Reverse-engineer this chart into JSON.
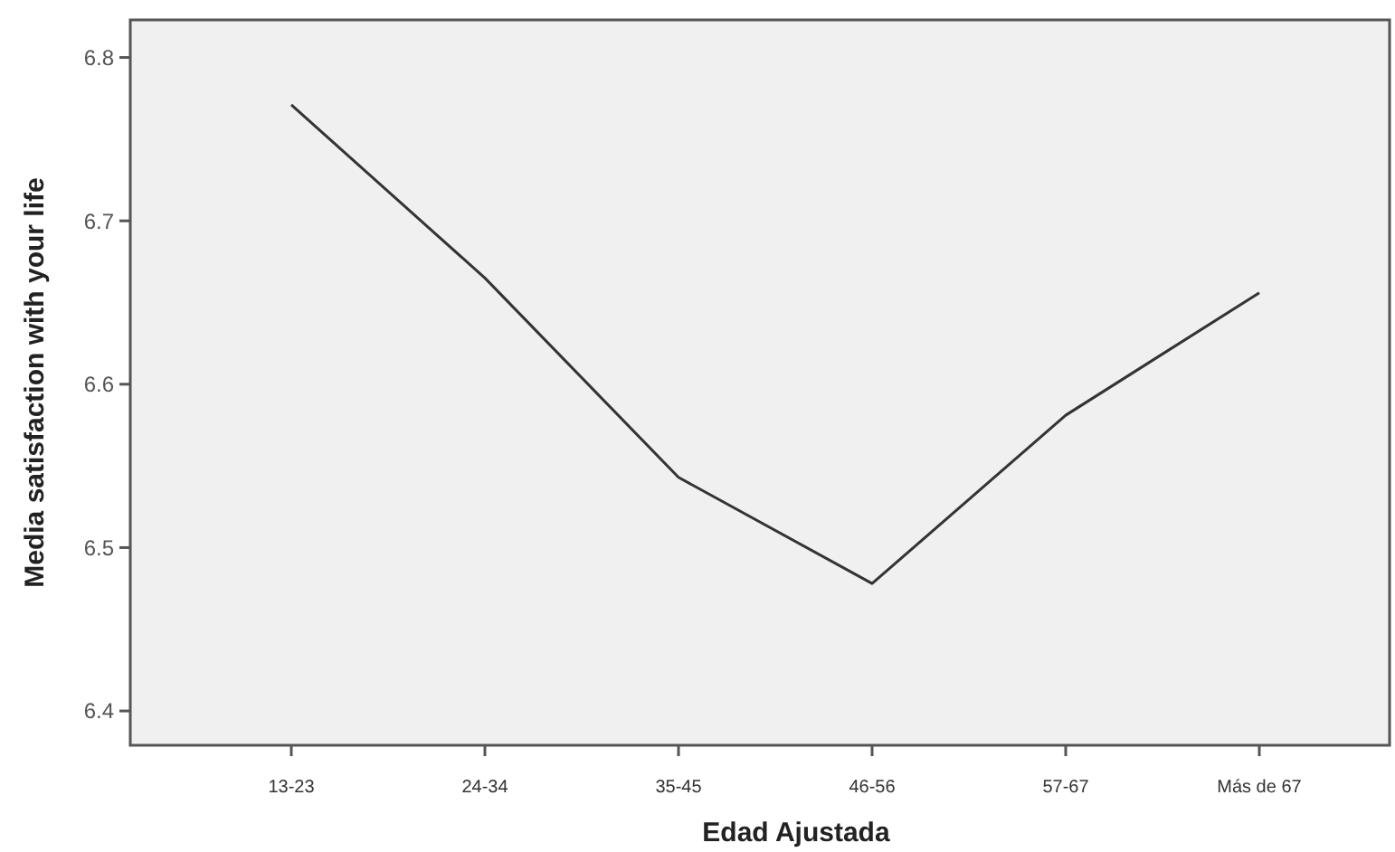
{
  "chart_data": {
    "type": "line",
    "xlabel": "Edad Ajustada",
    "ylabel": "Media satisfaction with your life",
    "categories": [
      "13-23",
      "24-34",
      "35-45",
      "46-56",
      "57-67",
      "Más de 67"
    ],
    "series": [
      {
        "color": "#333333",
        "values": [
          6.771,
          6.665,
          6.543,
          6.478,
          6.581,
          6.656
        ]
      }
    ],
    "ylim": [
      6.379,
      6.823
    ],
    "yticks": [
      6.4,
      6.5,
      6.6,
      6.7,
      6.8
    ],
    "marker": "none",
    "line_style": "solid"
  }
}
